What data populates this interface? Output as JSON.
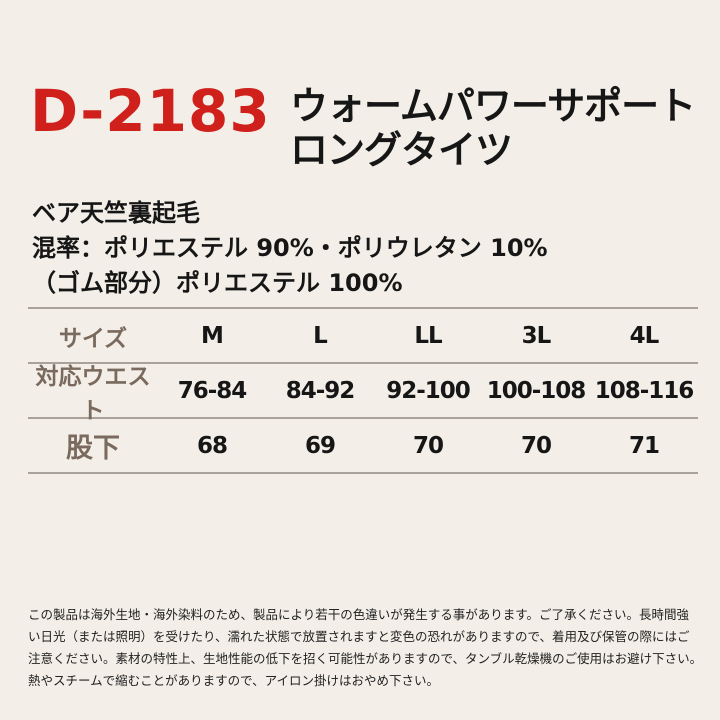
{
  "product_code": "D-2183",
  "product_name": [
    "ウォームパワーサポート",
    "ロングタイツ"
  ],
  "material": [
    "ベア天竺裏起毛",
    "混率：ポリエステル 90%・ポリウレタン 10%",
    "（ゴム部分）ポリエステル 100%"
  ],
  "size_table": {
    "rows": [
      {
        "label": "サイズ",
        "values": [
          "M",
          "L",
          "LL",
          "3L",
          "4L"
        ]
      },
      {
        "label": "対応ウエスト",
        "values": [
          "76-84",
          "84-92",
          "92-100",
          "100-108",
          "108-116"
        ]
      },
      {
        "label": "股下",
        "values": [
          "68",
          "69",
          "70",
          "70",
          "71"
        ]
      }
    ]
  },
  "notes": [
    "この製品は海外生地・海外染料のため、製品により若干の色違いが発生する事があります。ご了承ください。長時間強",
    "い日光（または照明）を受けたり、濡れた状態で放置されますと変色の恐れがありますので、着用及び保管の際にはご",
    "注意ください。素材の特性上、生地性能の低下を招く可能性がありますので、タンブル乾燥機のご使用はお避け下さい。",
    "熱やスチームで縮むことがありますので、アイロン掛けはおやめ下さい。"
  ],
  "colors": {
    "code": "#d0201c",
    "label": "#7a6a5e",
    "background": "#f3efe8"
  }
}
